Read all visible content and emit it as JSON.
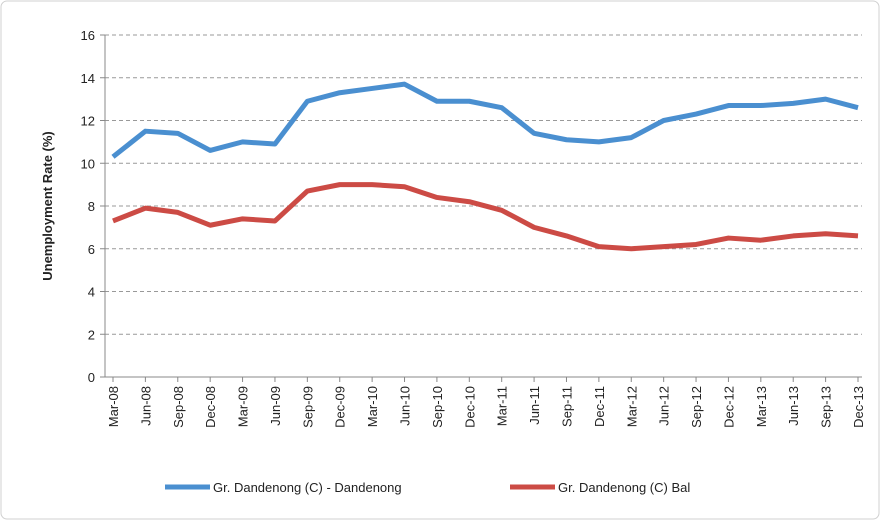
{
  "chart_data": {
    "type": "line",
    "y_label": "Unemployment Rate (%)",
    "categories": [
      "Mar-08",
      "Jun-08",
      "Sep-08",
      "Dec-08",
      "Mar-09",
      "Jun-09",
      "Sep-09",
      "Dec-09",
      "Mar-10",
      "Jun-10",
      "Sep-10",
      "Dec-10",
      "Mar-11",
      "Jun-11",
      "Sep-11",
      "Dec-11",
      "Mar-12",
      "Jun-12",
      "Sep-12",
      "Dec-12",
      "Mar-13",
      "Jun-13",
      "Sep-13",
      "Dec-13"
    ],
    "series": [
      {
        "name": "Gr. Dandenong (C) - Dandenong",
        "color": "#4a8fd0",
        "values": [
          10.3,
          11.5,
          11.4,
          10.6,
          11.0,
          10.9,
          12.9,
          13.3,
          13.5,
          13.7,
          12.9,
          12.9,
          12.6,
          11.4,
          11.1,
          11.0,
          11.2,
          12.0,
          12.3,
          12.7,
          12.7,
          12.8,
          13.0,
          12.6
        ]
      },
      {
        "name": "Gr. Dandenong (C) Bal",
        "color": "#cc4b45",
        "values": [
          7.3,
          7.9,
          7.7,
          7.1,
          7.4,
          7.3,
          8.7,
          9.0,
          9.0,
          8.9,
          8.4,
          8.2,
          7.8,
          7.0,
          6.6,
          6.1,
          6.0,
          6.1,
          6.2,
          6.5,
          6.4,
          6.6,
          6.7,
          6.6
        ]
      }
    ],
    "ylim": [
      0,
      16
    ],
    "yticks": [
      0,
      2,
      4,
      6,
      8,
      10,
      12,
      14,
      16
    ],
    "grid": true,
    "legend": "bottom"
  }
}
